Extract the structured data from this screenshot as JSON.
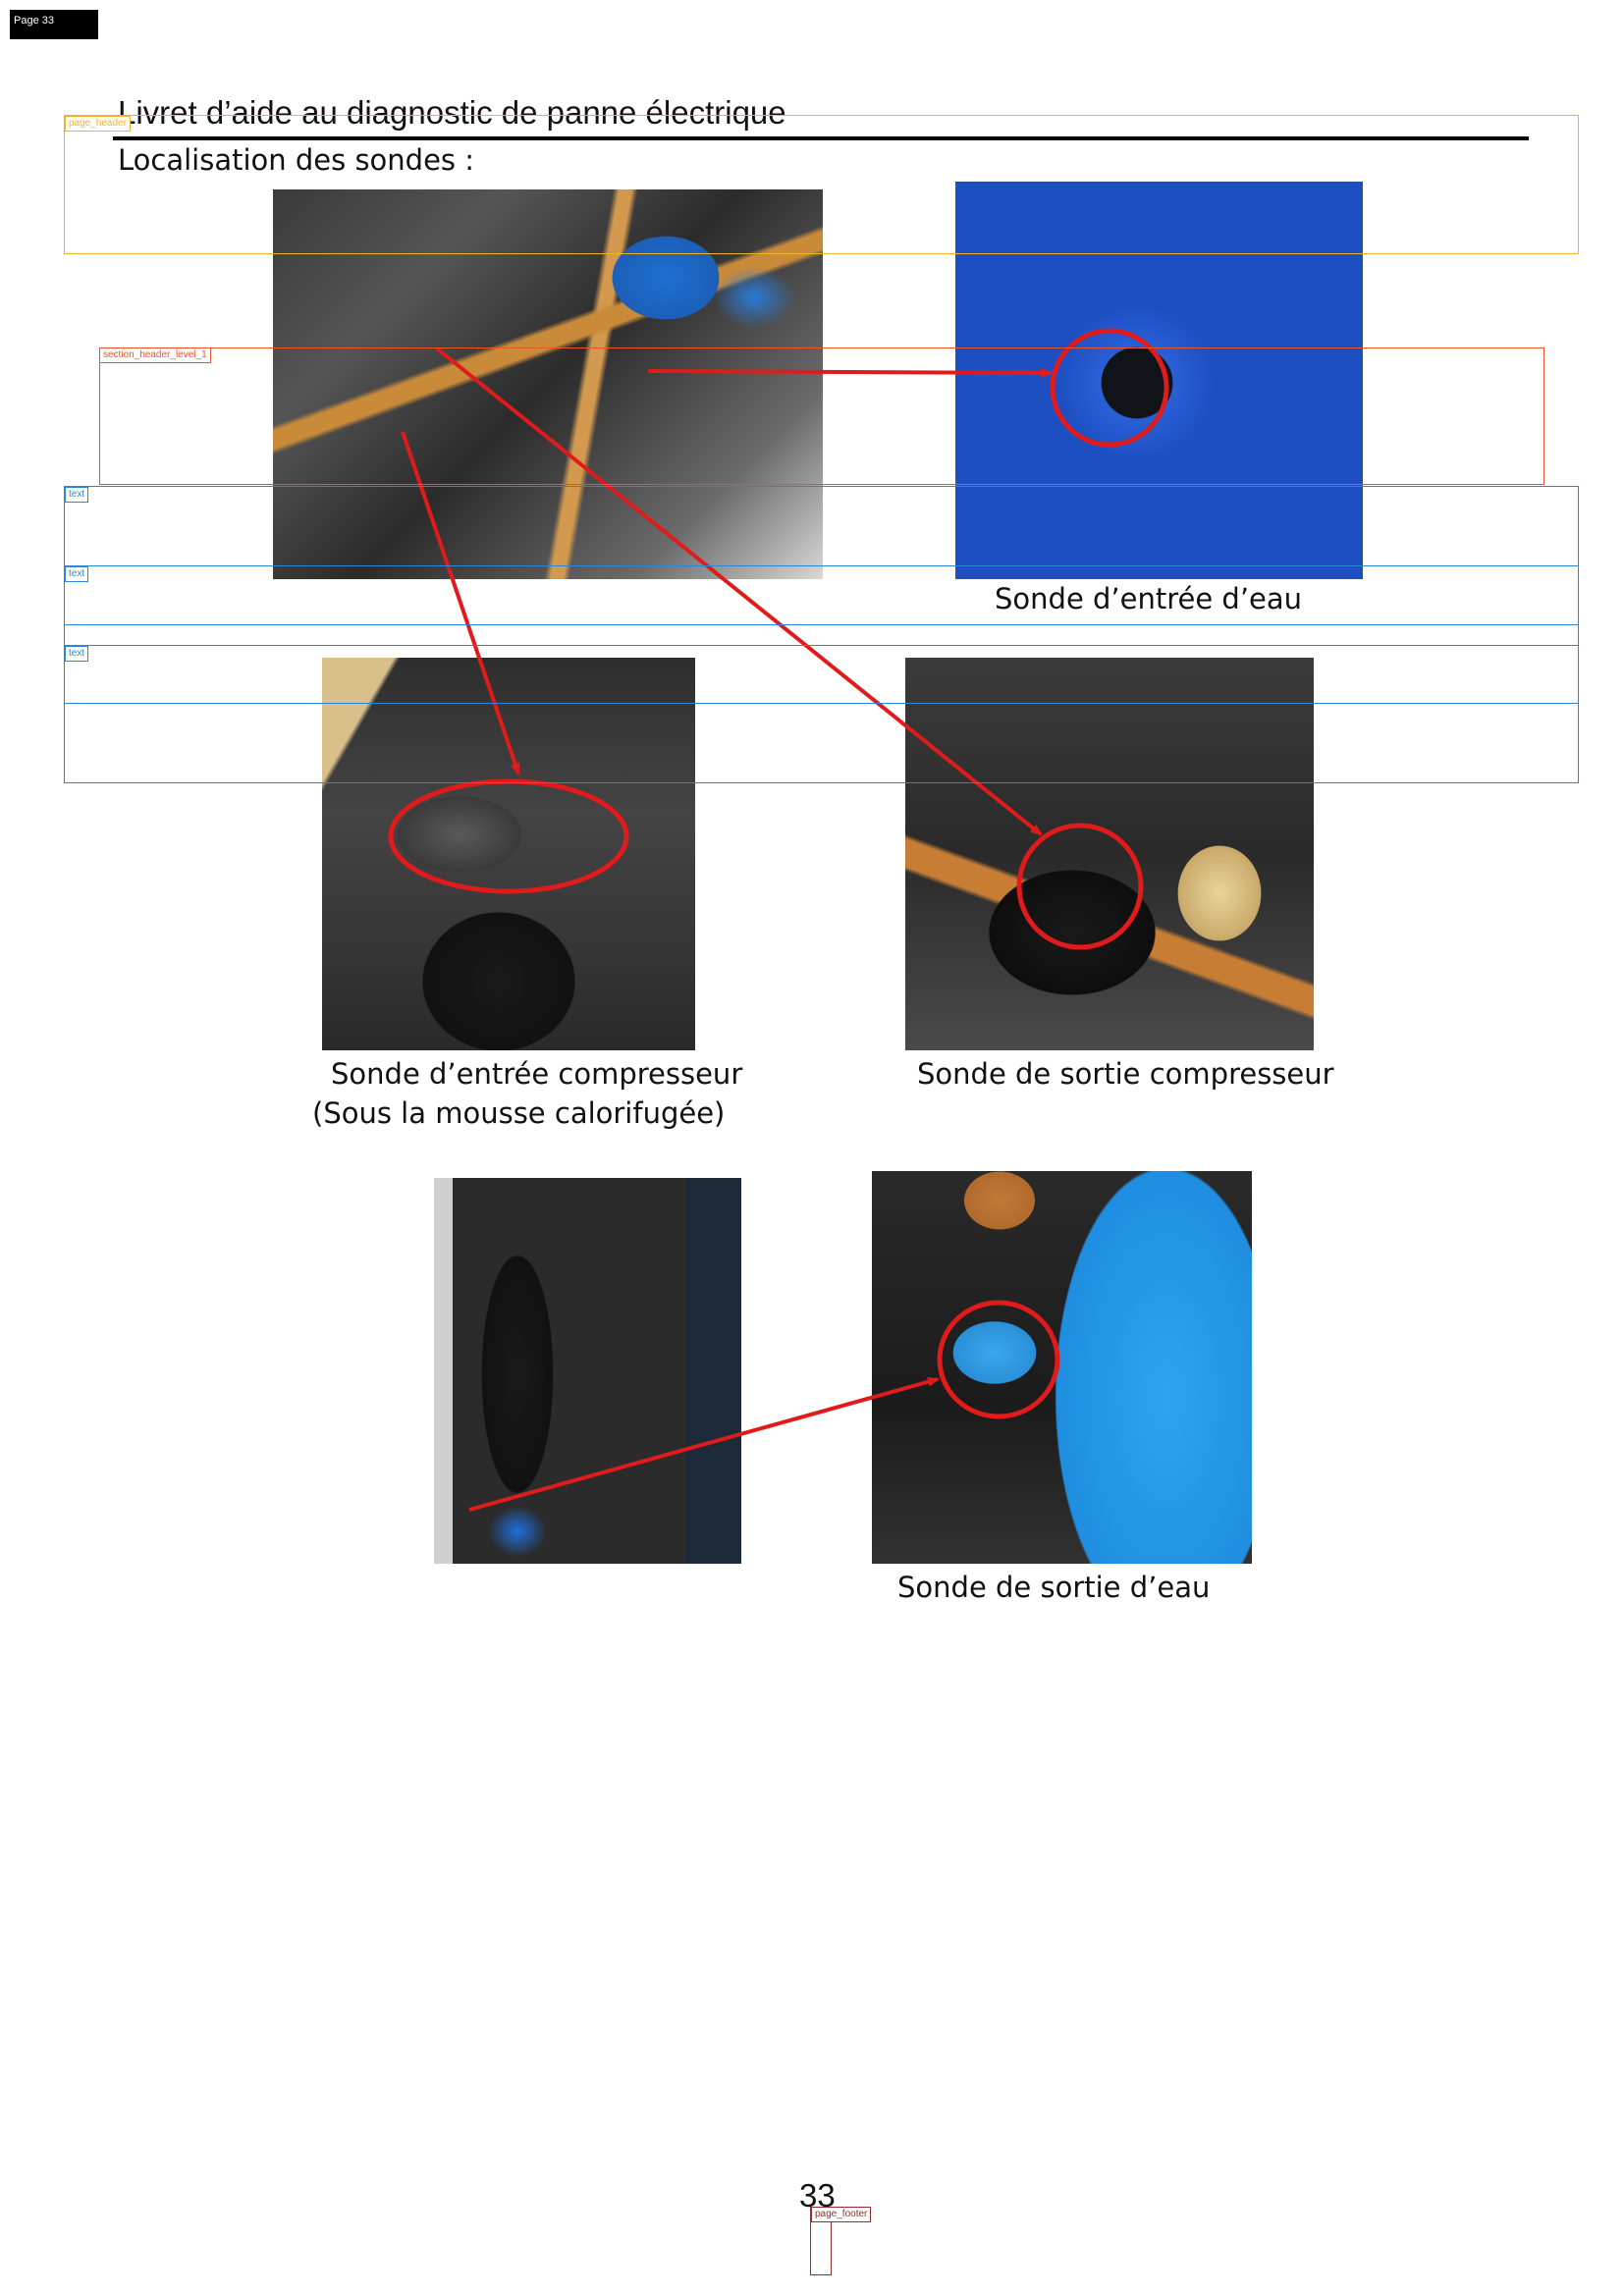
{
  "page_tag": "Page 33",
  "header": {
    "title": "Livret d’aide au diagnostic de panne électrique",
    "section_title": "Localisation des sondes :"
  },
  "captions": {
    "water_inlet": "Sonde d’entrée d’eau",
    "compressor_inlet": "Sonde d’entrée compresseur",
    "compressor_inlet_note": "(Sous la mousse calorifugée)",
    "compressor_outlet": "Sonde de sortie compresseur",
    "water_outlet": "Sonde de sortie d’eau"
  },
  "footer": {
    "page_number": "33"
  },
  "annotations": {
    "page_header": "page_header",
    "section_header": "section_header_level_1",
    "text": "text",
    "page_footer": "page_footer"
  },
  "colors": {
    "arrow": "#e11b1b",
    "page_header_box": "#f0b429",
    "section_header_box": "#e8552b",
    "text_box": "#2a86d6",
    "page_footer_box": "#9b2b2b"
  }
}
